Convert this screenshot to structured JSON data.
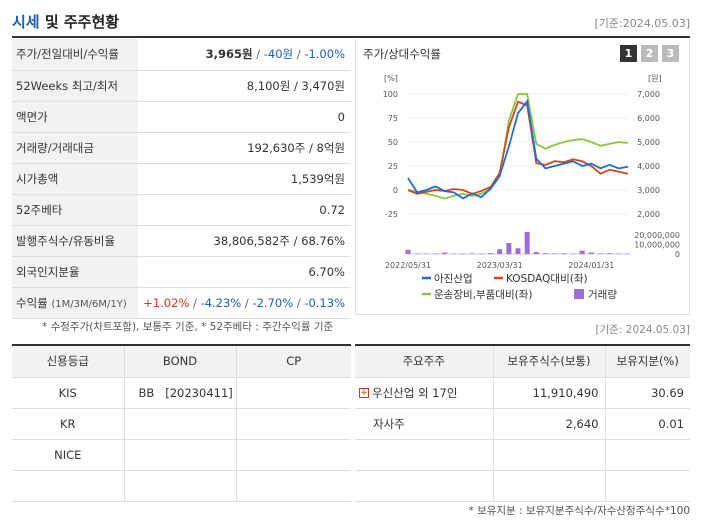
{
  "header": {
    "title_a": "시세",
    "title_b": " 및 주주현황",
    "date": "[기준:2024.05.03]"
  },
  "rows": [
    {
      "label": "주가/전일대비/수익률"
    },
    {
      "label": "52Weeks 최고/최저",
      "value": "8,100원 / 3,470원"
    },
    {
      "label": "액면가",
      "value": "0"
    },
    {
      "label": "거래량/거래대금",
      "value": "192,630주 / 8억원"
    },
    {
      "label": "시가총액",
      "value": "1,539억원"
    },
    {
      "label": "52주베타",
      "value": "0.72"
    },
    {
      "label": "발행주식수/유동비율",
      "value": "38,806,582주 / 68.76%"
    },
    {
      "label": "외국인지분율",
      "value": "6.70%"
    },
    {
      "label": "수익률",
      "sub": "(1M/3M/6M/1Y)"
    }
  ],
  "price": {
    "price": "3,965원",
    "sep1": " / ",
    "change": "-40원",
    "sep2": " / ",
    "pct": "-1.00%"
  },
  "returns": {
    "r1": "+1.02%",
    "r2": "-4.23%",
    "r3": "-2.70%",
    "r4": "-0.13%",
    "sep": " / "
  },
  "chart": {
    "title": "주가/상대수익률",
    "tabs": [
      "1",
      "2",
      "3"
    ],
    "left_unit": "[%]",
    "right_unit": "[원]",
    "left_ticks": [
      "100",
      "75",
      "50",
      "25",
      "0",
      "-25"
    ],
    "right_ticks": [
      "7,000",
      "6,000",
      "5,000",
      "4,000",
      "3,000",
      "2,000"
    ],
    "vol_ticks": [
      "20,000,000",
      "10,000,000",
      "0"
    ],
    "x_labels": [
      "2022/05/31",
      "2023/03/31",
      "2024/01/31"
    ],
    "legend": [
      "아진산업",
      "KOSDAQ대비(좌)",
      "운송장비,부품대비(좌)",
      "거래량"
    ],
    "colors": {
      "price": "#1f6fd1",
      "kosdaq": "#d9441a",
      "sector": "#8cc63f",
      "volume": "#9b6fd6"
    }
  },
  "chart_data": {
    "type": "line",
    "x": [
      "2022/05",
      "2022/06",
      "2022/07",
      "2022/08",
      "2022/09",
      "2022/10",
      "2022/11",
      "2022/12",
      "2023/01",
      "2023/02",
      "2023/03",
      "2023/04",
      "2023/05",
      "2023/06",
      "2023/07",
      "2023/08",
      "2023/09",
      "2023/10",
      "2023/11",
      "2023/12",
      "2024/01",
      "2024/02",
      "2024/03",
      "2024/04",
      "2024/05"
    ],
    "series": [
      {
        "name": "아진산업",
        "axis": "right",
        "values": [
          3500,
          2900,
          3000,
          3150,
          2950,
          2900,
          2650,
          2850,
          2700,
          3050,
          3600,
          4800,
          6200,
          6700,
          4300,
          3900,
          4000,
          4100,
          4200,
          4000,
          4100,
          3900,
          4050,
          3900,
          3965
        ]
      },
      {
        "name": "KOSDAQ대비(좌)",
        "axis": "left",
        "values": [
          0,
          -4,
          -2,
          0,
          -1,
          1,
          0,
          -4,
          -1,
          3,
          18,
          65,
          92,
          88,
          28,
          26,
          30,
          29,
          32,
          30,
          25,
          17,
          21,
          19,
          17
        ]
      },
      {
        "name": "운송장비,부품대비(좌)",
        "axis": "left",
        "values": [
          0,
          -2,
          -4,
          -6,
          -9,
          -6,
          -4,
          -6,
          -4,
          1,
          14,
          72,
          100,
          100,
          48,
          43,
          47,
          50,
          52,
          53,
          50,
          46,
          48,
          50,
          49
        ]
      },
      {
        "name": "거래량",
        "axis": "volume",
        "values": [
          4500000,
          500000,
          400000,
          600000,
          1500000,
          500000,
          400000,
          600000,
          300000,
          900000,
          5000000,
          11500000,
          6000000,
          23000000,
          2000000,
          800000,
          600000,
          700000,
          400000,
          3500000,
          1500000,
          600000,
          800000,
          500000,
          400000
        ]
      }
    ],
    "left_ylim": [
      -25,
      100
    ],
    "right_ylim": [
      2000,
      7000
    ],
    "volume_ylim": [
      0,
      25000000
    ]
  },
  "notes": {
    "n1": "* 수정주가(차트포함), 보통주 기준, * 52주베타 : 주간수익률 기준",
    "n2": "[기준: 2024.05.03]",
    "n3": "* 보유지분 : 보유지분주식수/자수산정주식수*100"
  },
  "credit": {
    "headers": [
      "신용등급",
      "BOND",
      "CP"
    ],
    "rows": [
      {
        "agency": "KIS",
        "bond": "BB   [20230411]",
        "cp": ""
      },
      {
        "agency": "KR",
        "bond": "",
        "cp": ""
      },
      {
        "agency": "NICE",
        "bond": "",
        "cp": ""
      },
      {
        "agency": "",
        "bond": "",
        "cp": ""
      }
    ]
  },
  "holders": {
    "headers": [
      "주요주주",
      "보유주식수(보통)",
      "보유지분(%)"
    ],
    "rows": [
      {
        "name": "우신산업 외 17인",
        "shares": "11,910,490",
        "pct": "30.69"
      },
      {
        "name": "자사주",
        "shares": "2,640",
        "pct": "0.01"
      },
      {
        "name": "",
        "shares": "",
        "pct": ""
      },
      {
        "name": "",
        "shares": "",
        "pct": ""
      }
    ]
  }
}
